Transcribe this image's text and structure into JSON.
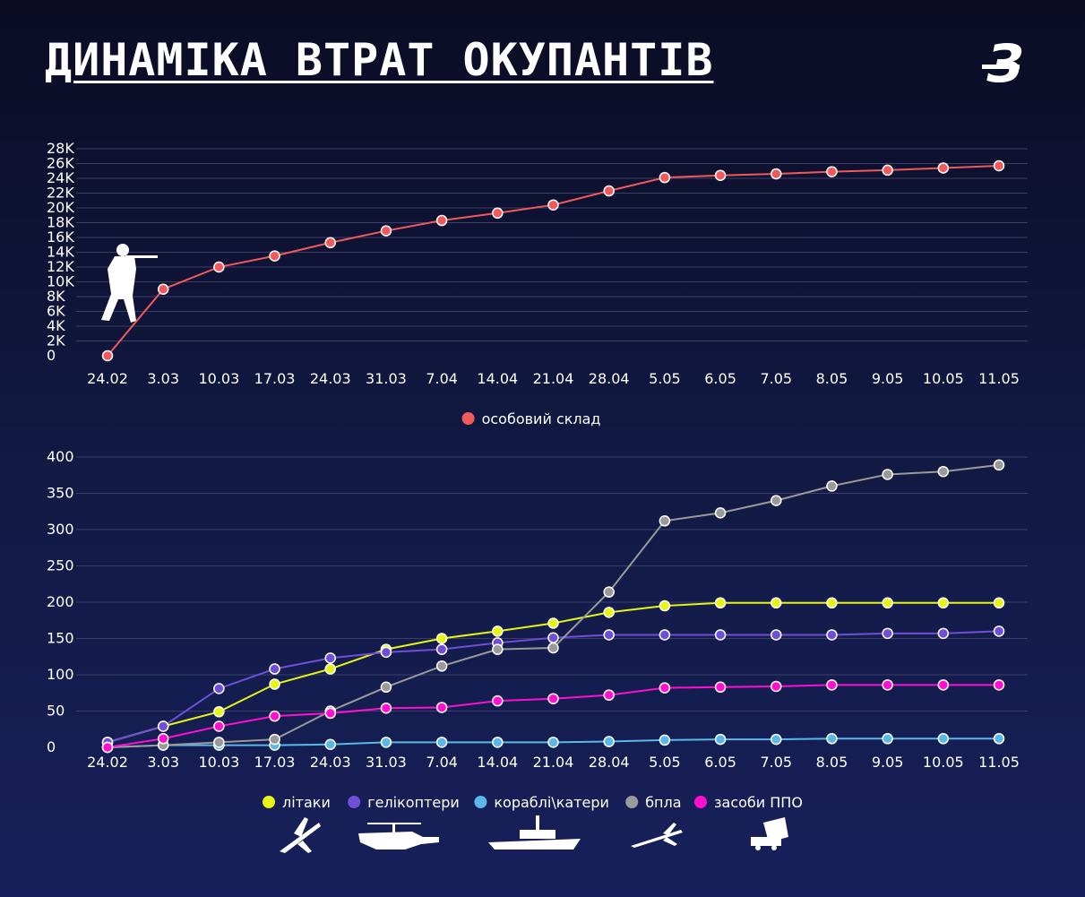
{
  "title": "ДИНАМІКА ВТРАТ ОКУПАНТІВ",
  "logo_text": "З",
  "chart_data": [
    {
      "type": "line",
      "categories": [
        "24.02",
        "3.03",
        "10.03",
        "17.03",
        "24.03",
        "31.03",
        "7.04",
        "14.04",
        "21.04",
        "28.04",
        "5.05",
        "6.05",
        "7.05",
        "8.05",
        "9.05",
        "10.05",
        "11.05"
      ],
      "y_ticks": [
        "0",
        "2K",
        "4K",
        "6K",
        "8K",
        "10K",
        "12K",
        "14K",
        "16K",
        "18K",
        "20K",
        "22K",
        "24K",
        "26K",
        "28K"
      ],
      "ylim": [
        0,
        28000
      ],
      "grid": true,
      "legend_position": "bottom",
      "series": [
        {
          "name": "особовий склад",
          "color": "#f05a5a",
          "values": [
            0,
            9000,
            12000,
            13500,
            15300,
            16900,
            18300,
            19300,
            20400,
            22300,
            24100,
            24400,
            24600,
            24900,
            25100,
            25400,
            25700
          ]
        }
      ]
    },
    {
      "type": "line",
      "categories": [
        "24.02",
        "3.03",
        "10.03",
        "17.03",
        "24.03",
        "31.03",
        "7.04",
        "14.04",
        "21.04",
        "28.04",
        "5.05",
        "6.05",
        "7.05",
        "8.05",
        "9.05",
        "10.05",
        "11.05"
      ],
      "y_ticks": [
        "0",
        "50",
        "100",
        "150",
        "200",
        "250",
        "300",
        "350",
        "400"
      ],
      "ylim": [
        0,
        400
      ],
      "grid": true,
      "legend_position": "bottom",
      "series": [
        {
          "name": "літаки",
          "color": "#e7f516",
          "values": [
            7,
            29,
            49,
            87,
            108,
            135,
            150,
            160,
            171,
            186,
            195,
            199,
            199,
            199,
            199,
            199,
            199
          ]
        },
        {
          "name": "гелікоптери",
          "color": "#6f4fd8",
          "values": [
            7,
            29,
            81,
            108,
            123,
            131,
            135,
            144,
            151,
            155,
            155,
            155,
            155,
            155,
            157,
            157,
            160
          ]
        },
        {
          "name": "кораблі\\катери",
          "color": "#5ab8e8",
          "values": [
            0,
            3,
            3,
            3,
            4,
            7,
            7,
            7,
            7,
            8,
            10,
            11,
            11,
            12,
            12,
            12,
            12
          ]
        },
        {
          "name": "бпла",
          "color": "#9a9a9a",
          "values": [
            0,
            3,
            7,
            11,
            50,
            83,
            112,
            135,
            137,
            214,
            312,
            323,
            340,
            360,
            376,
            380,
            389
          ]
        },
        {
          "name": "засоби ППО",
          "color": "#ff10d0",
          "values": [
            0,
            12,
            29,
            43,
            47,
            54,
            55,
            64,
            67,
            72,
            82,
            83,
            84,
            86,
            86,
            86,
            86
          ]
        }
      ]
    }
  ]
}
